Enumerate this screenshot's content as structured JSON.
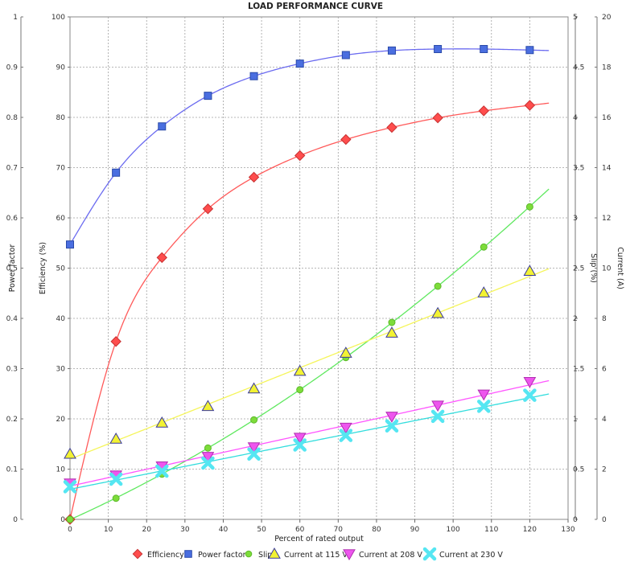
{
  "chart_data": {
    "type": "scatter",
    "title": "LOAD PERFORMANCE CURVE",
    "xlabel": "Percent of rated output",
    "xlim": [
      0,
      130
    ],
    "x_ticks": [
      "0",
      "10",
      "20",
      "30",
      "40",
      "50",
      "60",
      "70",
      "80",
      "90",
      "100",
      "110",
      "120",
      "130"
    ],
    "grid": true,
    "legend_position": "bottom",
    "axes": {
      "power_factor": {
        "label": "Power factor",
        "lim": [
          0,
          1
        ],
        "ticks": [
          "0",
          "0.1",
          "0.2",
          "0.3",
          "0.4",
          "0.5",
          "0.6",
          "0.7",
          "0.8",
          "0.9",
          "1"
        ]
      },
      "efficiency": {
        "label": "Efficiency (%)",
        "lim": [
          0,
          100
        ],
        "ticks": [
          "0",
          "10",
          "20",
          "30",
          "40",
          "50",
          "60",
          "70",
          "80",
          "90",
          "100"
        ]
      },
      "slip": {
        "label": "Slip (%)",
        "lim": [
          0,
          5
        ],
        "ticks": [
          "0",
          "0.5",
          "1",
          "1.5",
          "2",
          "2.5",
          "3",
          "3.5",
          "4",
          "4.5",
          "5"
        ]
      },
      "current": {
        "label": "Current (A)",
        "lim": [
          0,
          20
        ],
        "ticks": [
          "0",
          "2",
          "4",
          "6",
          "8",
          "10",
          "12",
          "14",
          "16",
          "18",
          "20"
        ]
      }
    },
    "series": [
      {
        "name": "Efficiency",
        "axis": "efficiency",
        "marker": "diamond",
        "color": "#ff4d4d",
        "line_color": "#ff5a5a",
        "x": [
          0,
          12,
          24,
          36,
          48,
          60,
          72,
          84,
          96,
          108,
          120
        ],
        "values": [
          0,
          35.4,
          52.1,
          61.8,
          68.1,
          72.4,
          75.6,
          78.0,
          79.9,
          81.3,
          82.4
        ]
      },
      {
        "name": "Power factor",
        "axis": "power_factor",
        "marker": "square",
        "color": "#4a6ee0",
        "line_color": "#6b6bf0",
        "x": [
          0,
          12,
          24,
          36,
          48,
          60,
          72,
          84,
          96,
          108,
          120
        ],
        "values": [
          0.547,
          0.69,
          0.782,
          0.843,
          0.882,
          0.907,
          0.924,
          0.933,
          0.936,
          0.936,
          0.934
        ]
      },
      {
        "name": "Slip",
        "axis": "slip",
        "marker": "circle",
        "color": "#7ddc3a",
        "line_color": "#5fe85f",
        "x": [
          0,
          12,
          24,
          36,
          48,
          60,
          72,
          84,
          96,
          108,
          120
        ],
        "values": [
          0.0,
          0.21,
          0.45,
          0.71,
          0.99,
          1.29,
          1.61,
          1.96,
          2.32,
          2.71,
          3.11
        ]
      },
      {
        "name": "Current at 115 V",
        "axis": "current",
        "marker": "triangle-up",
        "color": "#f2f233",
        "line_color": "#f5f55a",
        "x": [
          0,
          12,
          24,
          36,
          48,
          60,
          72,
          84,
          96,
          108,
          120
        ],
        "values": [
          2.6,
          3.2,
          3.84,
          4.5,
          5.2,
          5.9,
          6.62,
          7.42,
          8.2,
          9.02,
          9.88
        ]
      },
      {
        "name": "Current at 208 V",
        "axis": "current",
        "marker": "triangle-down",
        "color": "#ee55ee",
        "line_color": "#ff55ff",
        "x": [
          0,
          12,
          24,
          36,
          48,
          60,
          72,
          84,
          96,
          108,
          120
        ],
        "values": [
          1.44,
          1.76,
          2.12,
          2.5,
          2.88,
          3.26,
          3.66,
          4.1,
          4.54,
          4.98,
          5.48
        ]
      },
      {
        "name": "Current at 230 V",
        "axis": "current",
        "marker": "x",
        "color": "#55e6f2",
        "line_color": "#33dddd",
        "x": [
          0,
          12,
          24,
          36,
          48,
          60,
          72,
          84,
          96,
          108,
          120
        ],
        "values": [
          1.3,
          1.6,
          1.92,
          2.24,
          2.6,
          2.96,
          3.34,
          3.72,
          4.1,
          4.5,
          4.94
        ]
      }
    ]
  }
}
